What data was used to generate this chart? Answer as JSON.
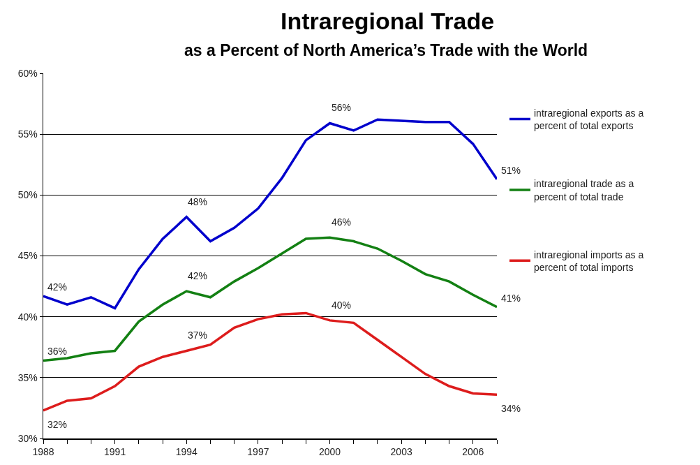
{
  "chart_data": {
    "type": "line",
    "title": "Intraregional Trade",
    "subtitle": "as a Percent of North America’s Trade with the World",
    "x": [
      1988,
      1989,
      1990,
      1991,
      1992,
      1993,
      1994,
      1995,
      1996,
      1997,
      1998,
      1999,
      2000,
      2001,
      2002,
      2003,
      2004,
      2005,
      2006,
      2007
    ],
    "series": [
      {
        "name": "intraregional exports as a percent of total exports",
        "color": "#0000cc",
        "values": [
          41.7,
          41.0,
          41.6,
          40.7,
          43.9,
          46.4,
          48.2,
          46.2,
          47.3,
          48.9,
          51.4,
          54.5,
          55.9,
          55.3,
          56.2,
          56.1,
          56.0,
          56.0,
          54.2,
          51.3
        ],
        "value_labels": [
          "42%",
          null,
          null,
          null,
          null,
          null,
          "48%",
          null,
          null,
          null,
          null,
          null,
          "56%",
          null,
          null,
          null,
          null,
          null,
          null,
          "51%"
        ]
      },
      {
        "name": "intraregional trade as a percent of total trade",
        "color": "#138013",
        "values": [
          36.4,
          36.6,
          37.0,
          37.2,
          39.6,
          41.0,
          42.1,
          41.6,
          42.9,
          44.0,
          45.2,
          46.4,
          46.5,
          46.2,
          45.6,
          44.6,
          43.5,
          42.9,
          41.8,
          40.8
        ],
        "value_labels": [
          "36%",
          null,
          null,
          null,
          null,
          null,
          "42%",
          null,
          null,
          null,
          null,
          null,
          "46%",
          null,
          null,
          null,
          null,
          null,
          null,
          "41%"
        ]
      },
      {
        "name": "intraregional imports as a percent of total imports",
        "color": "#dd1c1c",
        "values": [
          32.3,
          33.1,
          33.3,
          34.3,
          35.9,
          36.7,
          37.2,
          37.7,
          39.1,
          39.8,
          40.2,
          40.3,
          39.7,
          39.5,
          38.1,
          36.7,
          35.3,
          34.3,
          33.7,
          33.6
        ],
        "value_labels": [
          "32%",
          null,
          null,
          null,
          null,
          null,
          "37%",
          null,
          null,
          null,
          null,
          null,
          "40%",
          null,
          null,
          null,
          null,
          null,
          null,
          "34%"
        ]
      }
    ],
    "xlim": [
      1988,
      2007
    ],
    "xticks": [
      1988,
      {
        "value": 1989,
        "label": null
      },
      {
        "value": 1990,
        "label": null
      },
      1991,
      {
        "value": 1992,
        "label": null
      },
      {
        "value": 1993,
        "label": null
      },
      1994,
      {
        "value": 1995,
        "label": null
      },
      {
        "value": 1996,
        "label": null
      },
      1997,
      {
        "value": 1998,
        "label": null
      },
      {
        "value": 1999,
        "label": null
      },
      2000,
      {
        "value": 2001,
        "label": null
      },
      {
        "value": 2002,
        "label": null
      },
      2003,
      {
        "value": 2004,
        "label": null
      },
      {
        "value": 2005,
        "label": null
      },
      2006,
      {
        "value": 2007,
        "label": null
      }
    ],
    "ylim": [
      30,
      60
    ],
    "yticks": [
      {
        "value": 30,
        "label": "30%"
      },
      {
        "value": 35,
        "label": "35%"
      },
      {
        "value": 40,
        "label": "40%"
      },
      {
        "value": 45,
        "label": "45%"
      },
      {
        "value": 50,
        "label": "50%"
      },
      {
        "value": 55,
        "label": "55%"
      },
      {
        "value": 60,
        "label": "60%"
      }
    ],
    "grid": "y",
    "legend": "right",
    "marker": "none",
    "line_style": "solid"
  }
}
